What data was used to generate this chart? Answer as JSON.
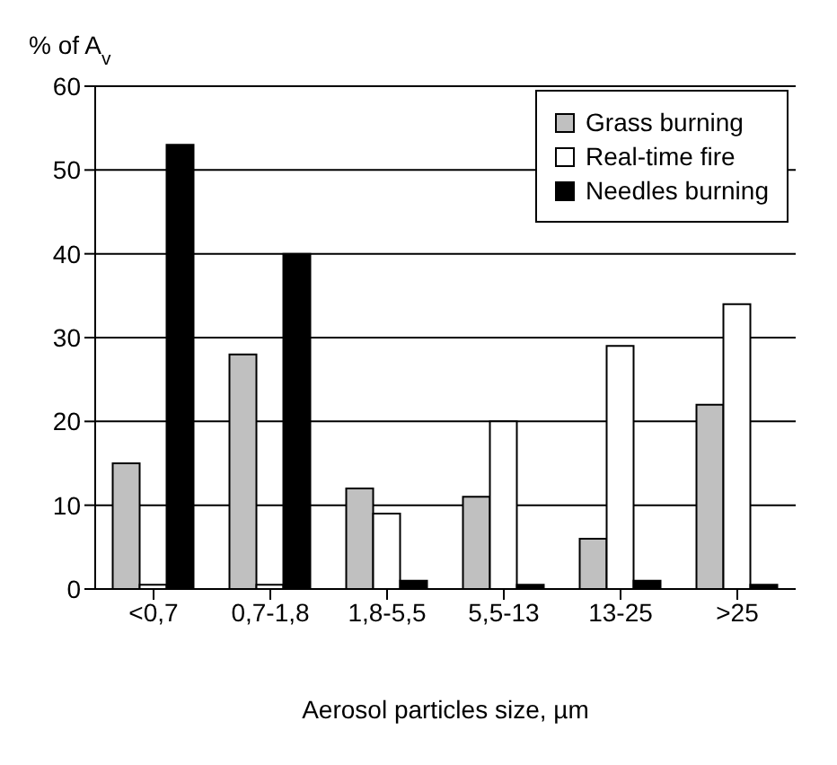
{
  "chart_data": {
    "type": "bar",
    "ylabel": "% of A$_{v}$",
    "xlabel": "Aerosol particles size, µm",
    "categories": [
      "<0,7",
      "0,7-1,8",
      "1,8-5,5",
      "5,5-13",
      "13-25",
      ">25"
    ],
    "series": [
      {
        "name": "Grass burning",
        "color": "#c0c0c0",
        "values": [
          15,
          28,
          12,
          11,
          6,
          22
        ]
      },
      {
        "name": "Real-time fire",
        "color": "#ffffff",
        "values": [
          0.5,
          0.5,
          9,
          20,
          29,
          34
        ]
      },
      {
        "name": "Needles burning",
        "color": "#000000",
        "values": [
          53,
          40,
          1,
          0.5,
          1,
          0.5
        ]
      }
    ],
    "ylim": [
      0,
      60
    ],
    "yticks": [
      0,
      10,
      20,
      30,
      40,
      50,
      60
    ],
    "grid": "y",
    "legend": "top right"
  }
}
